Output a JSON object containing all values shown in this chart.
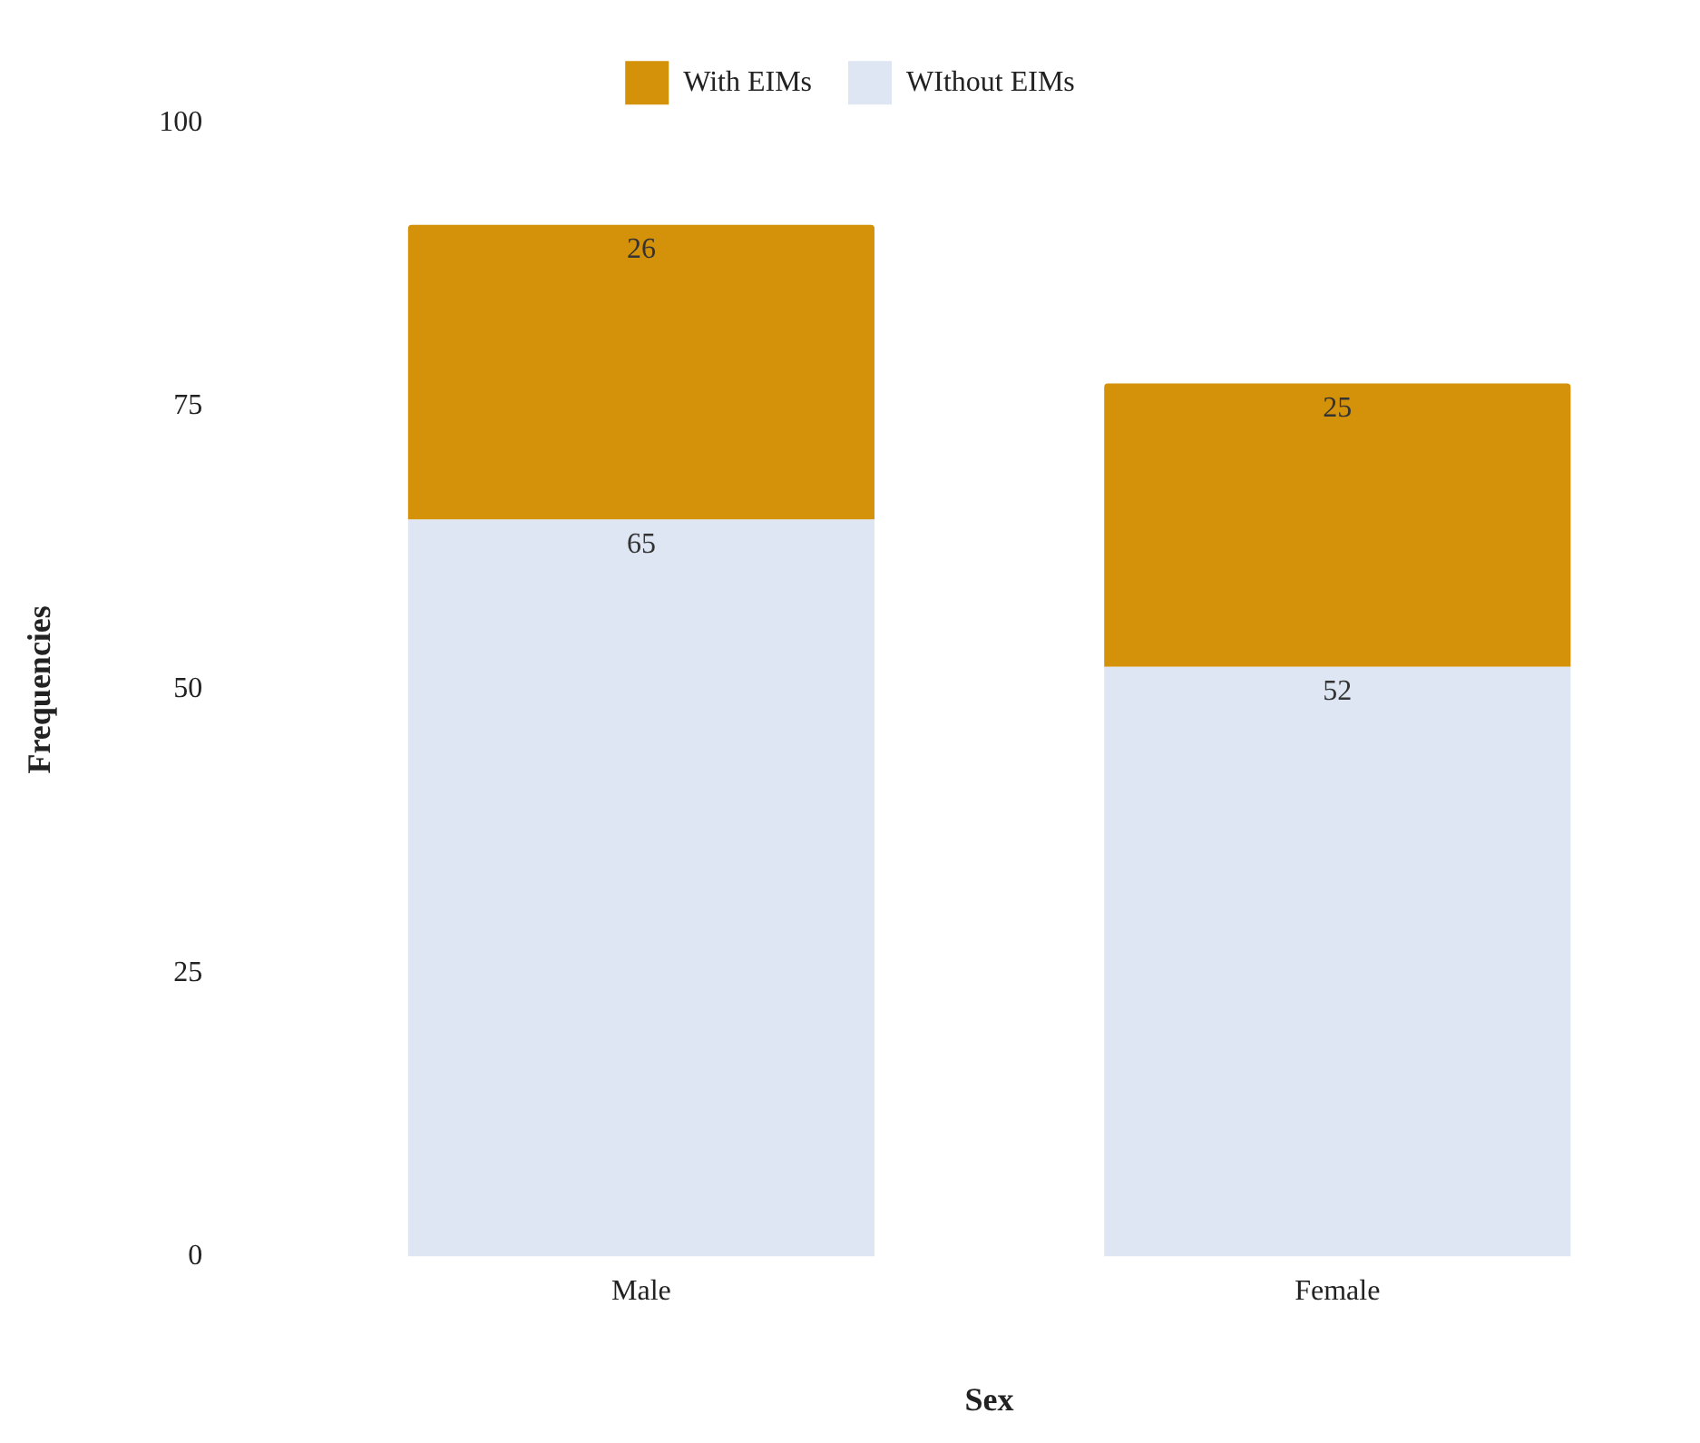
{
  "chart_data": {
    "type": "bar",
    "stacked": true,
    "xlabel": "Sex",
    "ylabel": "Frequencies",
    "categories": [
      "Male",
      "Female"
    ],
    "series": [
      {
        "name": "WIthout EIMs",
        "color": "#dde6f2",
        "values": [
          65,
          52
        ]
      },
      {
        "name": "With EIMs",
        "color": "#d4910a",
        "values": [
          26,
          25
        ]
      }
    ],
    "ylim": [
      0,
      100
    ],
    "yticks": [
      0,
      25,
      50,
      75,
      100
    ],
    "grid": false,
    "legend": "top",
    "data_labels": true
  }
}
